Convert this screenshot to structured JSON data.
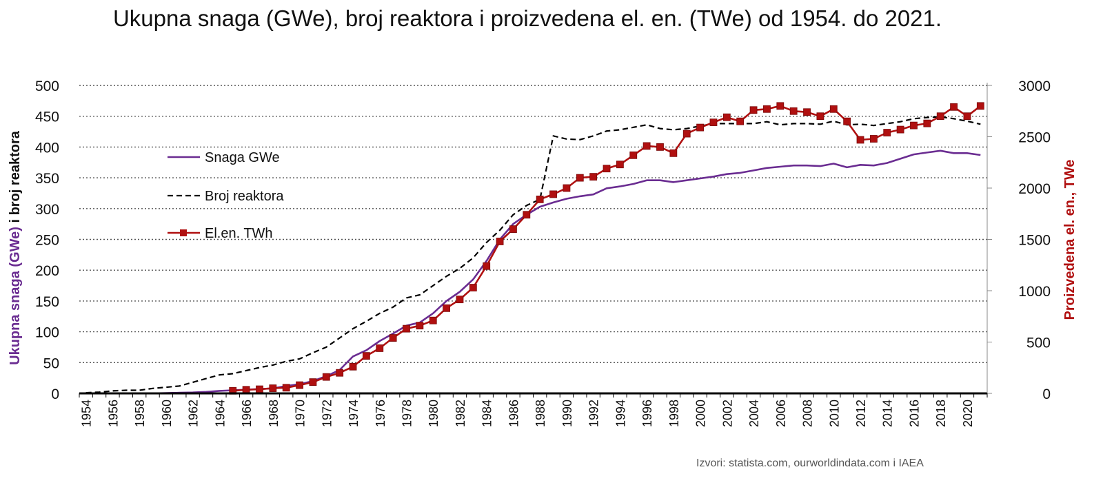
{
  "title": "Ukupna snaga (GWe), broj reaktora i proizvedena el. en. (TWe) od 1954. do 2021.",
  "source": "Izvori: statista.com, ourworldindata.com i IAEA",
  "colors": {
    "snaga": "#6a2c91",
    "reaktori": "#000000",
    "energija": "#b01010",
    "grid": "#555555"
  },
  "chart_data": {
    "type": "line",
    "title": "Ukupna snaga (GWe), broj reaktora i proizvedena el. en. (TWe) od 1954. do 2021.",
    "xlabel": "",
    "ylabel_left": [
      "Ukupna snaga (GWe)",
      " i broj reaktora"
    ],
    "ylabel_right": "Proizvedena el. en., TWe",
    "ylim_left": [
      0,
      500
    ],
    "ylim_right": [
      0,
      3000
    ],
    "yticks_left": [
      "0",
      "50",
      "100",
      "150",
      "200",
      "250",
      "300",
      "350",
      "400",
      "450",
      "500"
    ],
    "yticks_right": [
      "0",
      "500",
      "1000",
      "1500",
      "2000",
      "2500",
      "3000"
    ],
    "xlim": [
      1954,
      2021
    ],
    "xticks": [
      "1954",
      "1956",
      "1958",
      "1960",
      "1962",
      "1964",
      "1966",
      "1968",
      "1970",
      "1972",
      "1974",
      "1976",
      "1978",
      "1980",
      "1982",
      "1984",
      "1986",
      "1988",
      "1990",
      "1992",
      "1994",
      "1996",
      "1998",
      "2000",
      "2002",
      "2004",
      "2006",
      "2008",
      "2010",
      "2012",
      "2014",
      "2016",
      "2018",
      "2020"
    ],
    "grid": true,
    "legend_position": "upper-left",
    "series": [
      {
        "name": "Snaga GWe",
        "axis": "left",
        "style": "solid",
        "x": [
          1954,
          1955,
          1956,
          1957,
          1958,
          1959,
          1960,
          1961,
          1962,
          1963,
          1964,
          1965,
          1966,
          1967,
          1968,
          1969,
          1970,
          1971,
          1972,
          1973,
          1974,
          1975,
          1976,
          1977,
          1978,
          1979,
          1980,
          1981,
          1982,
          1983,
          1984,
          1985,
          1986,
          1987,
          1988,
          1989,
          1990,
          1991,
          1992,
          1993,
          1994,
          1995,
          1996,
          1997,
          1998,
          1999,
          2000,
          2001,
          2002,
          2003,
          2004,
          2005,
          2006,
          2007,
          2008,
          2009,
          2010,
          2011,
          2012,
          2013,
          2014,
          2015,
          2016,
          2017,
          2018,
          2019,
          2020,
          2021
        ],
        "values": [
          0,
          0,
          0,
          0,
          0,
          0,
          0.5,
          1,
          1.5,
          2.5,
          4,
          5,
          6,
          7,
          8,
          12,
          15,
          20,
          28,
          38,
          60,
          70,
          85,
          97,
          110,
          115,
          130,
          150,
          165,
          185,
          215,
          250,
          275,
          290,
          303,
          310,
          316,
          320,
          323,
          333,
          336,
          340,
          346,
          346,
          343,
          346,
          349,
          352,
          356,
          358,
          362,
          366,
          368,
          370,
          370,
          369,
          373,
          367,
          371,
          370,
          374,
          381,
          388,
          391,
          394,
          390,
          390,
          387
        ]
      },
      {
        "name": "Broj reaktora",
        "axis": "left",
        "style": "dashed",
        "x": [
          1954,
          1955,
          1956,
          1957,
          1958,
          1959,
          1960,
          1961,
          1962,
          1963,
          1964,
          1965,
          1966,
          1967,
          1968,
          1969,
          1970,
          1971,
          1972,
          1973,
          1974,
          1975,
          1976,
          1977,
          1978,
          1979,
          1980,
          1981,
          1982,
          1983,
          1984,
          1985,
          1986,
          1987,
          1988,
          1989,
          1990,
          1991,
          1992,
          1993,
          1994,
          1995,
          1996,
          1997,
          1998,
          1999,
          2000,
          2001,
          2002,
          2003,
          2004,
          2005,
          2006,
          2007,
          2008,
          2009,
          2010,
          2011,
          2012,
          2013,
          2014,
          2015,
          2016,
          2017,
          2018,
          2019,
          2020,
          2021
        ],
        "values": [
          1,
          2,
          4,
          5,
          5,
          8,
          10,
          12,
          18,
          24,
          30,
          32,
          37,
          42,
          46,
          52,
          56,
          66,
          75,
          90,
          105,
          117,
          130,
          140,
          155,
          160,
          175,
          190,
          203,
          220,
          245,
          265,
          290,
          305,
          315,
          418,
          413,
          412,
          418,
          426,
          428,
          432,
          436,
          430,
          428,
          430,
          434,
          438,
          438,
          438,
          438,
          441,
          436,
          438,
          438,
          437,
          442,
          436,
          437,
          435,
          438,
          441,
          446,
          448,
          449,
          446,
          442,
          437
        ]
      },
      {
        "name": "El.en. TWh",
        "axis": "right",
        "style": "solid-square-markers",
        "x": [
          1965,
          1966,
          1967,
          1968,
          1969,
          1970,
          1971,
          1972,
          1973,
          1974,
          1975,
          1976,
          1977,
          1978,
          1979,
          1980,
          1981,
          1982,
          1983,
          1984,
          1985,
          1986,
          1987,
          1988,
          1989,
          1990,
          1991,
          1992,
          1993,
          1994,
          1995,
          1996,
          1997,
          1998,
          1999,
          2000,
          2001,
          2002,
          2003,
          2004,
          2005,
          2006,
          2007,
          2008,
          2009,
          2010,
          2011,
          2012,
          2013,
          2014,
          2015,
          2016,
          2017,
          2018,
          2019,
          2020,
          2021
        ],
        "values": [
          25,
          35,
          40,
          50,
          55,
          80,
          110,
          160,
          200,
          260,
          365,
          440,
          540,
          630,
          660,
          710,
          830,
          915,
          1030,
          1240,
          1480,
          1600,
          1740,
          1890,
          1940,
          2000,
          2100,
          2110,
          2190,
          2230,
          2320,
          2410,
          2400,
          2340,
          2530,
          2590,
          2640,
          2690,
          2650,
          2760,
          2770,
          2800,
          2750,
          2740,
          2700,
          2770,
          2650,
          2470,
          2480,
          2540,
          2570,
          2610,
          2630,
          2700,
          2790,
          2700,
          2800
        ]
      }
    ]
  }
}
